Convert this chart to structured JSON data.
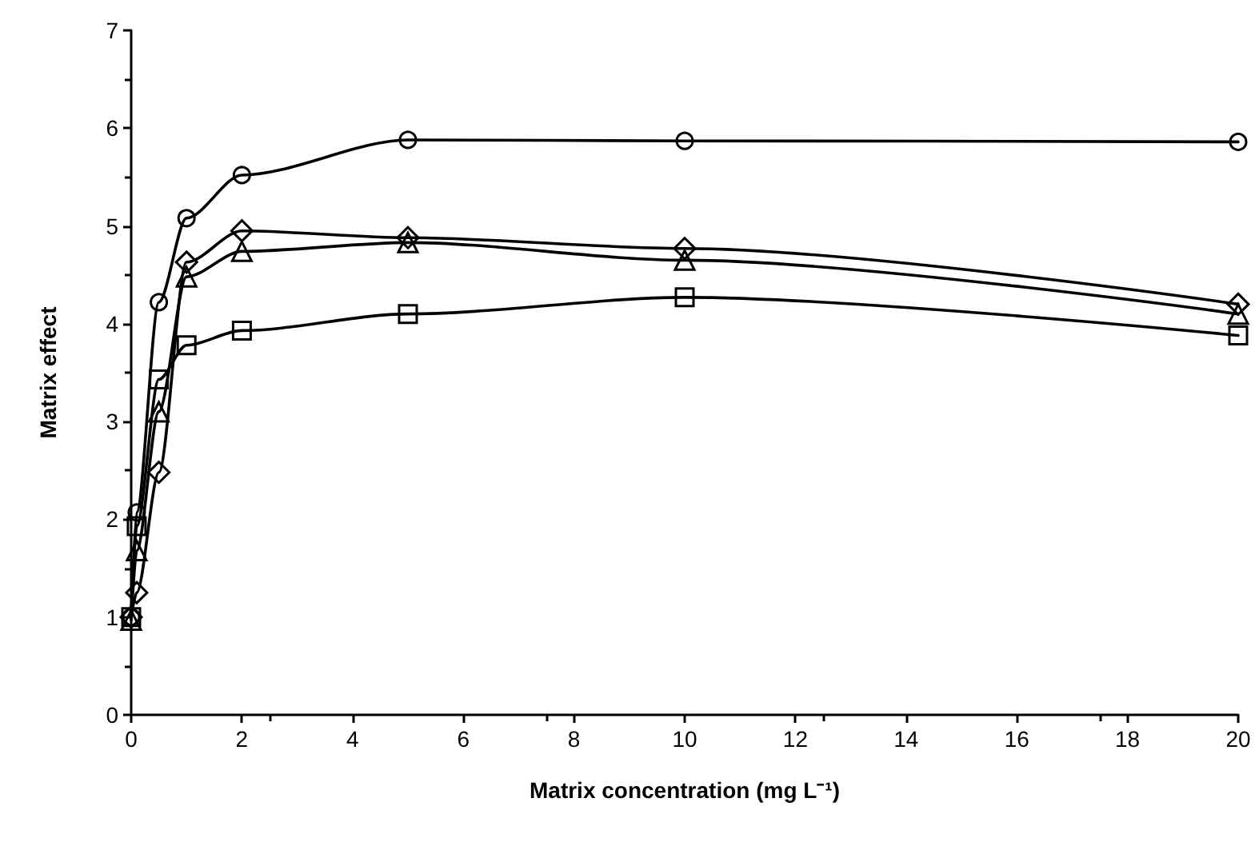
{
  "chart_data": {
    "type": "line",
    "xlabel": "Matrix concentration (mg L⁻¹)",
    "ylabel": "Matrix effect",
    "x": [
      0,
      0.1,
      0.5,
      1,
      2,
      5,
      10,
      20
    ],
    "series": [
      {
        "color": "#000000",
        "marker": "circle",
        "values": [
          1.0,
          2.07,
          4.22,
          5.08,
          5.52,
          5.88,
          5.87,
          5.86
        ]
      },
      {
        "color": "#000000",
        "marker": "diamond",
        "values": [
          1.0,
          1.25,
          2.48,
          4.63,
          4.95,
          4.88,
          4.77,
          4.2
        ]
      },
      {
        "color": "#000000",
        "marker": "triangle",
        "values": [
          0.97,
          1.68,
          3.1,
          4.48,
          4.74,
          4.83,
          4.65,
          4.1
        ]
      },
      {
        "color": "#000000",
        "marker": "square",
        "values": [
          1.0,
          1.93,
          3.43,
          3.78,
          3.93,
          4.1,
          4.27,
          3.88
        ]
      }
    ],
    "xlim": [
      0,
      20
    ],
    "xticks": [
      0,
      2,
      4,
      6,
      8,
      10,
      12,
      14,
      16,
      18,
      20
    ],
    "ylim": [
      0,
      7
    ],
    "yticks": [
      0,
      1,
      2,
      3,
      4,
      5,
      6,
      7
    ],
    "grid": false,
    "line_style": "solid"
  }
}
